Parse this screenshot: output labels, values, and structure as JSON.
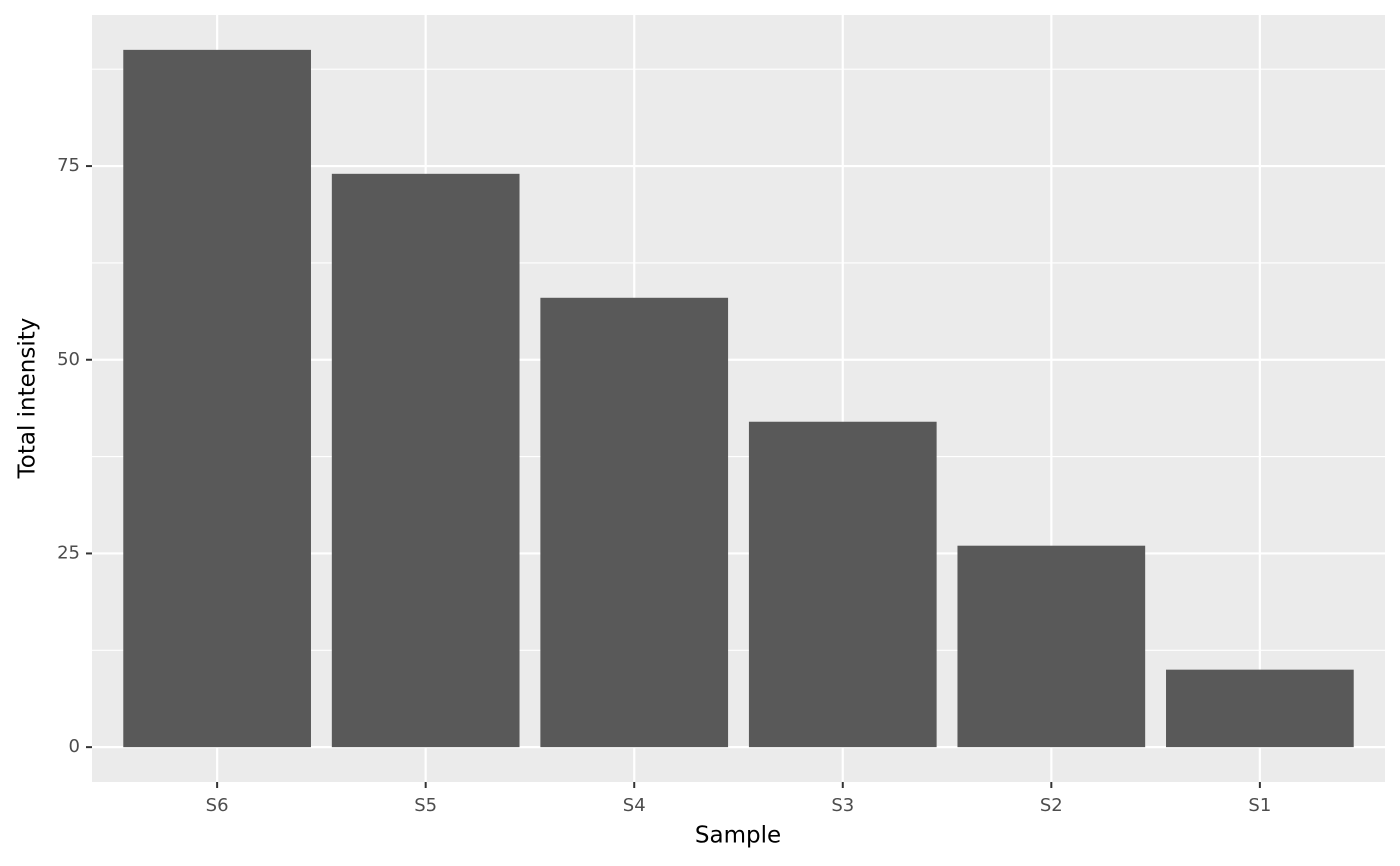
{
  "chart_data": {
    "type": "bar",
    "x_label": "Sample",
    "y_label": "Total intensity",
    "categories": [
      "S6",
      "S5",
      "S4",
      "S3",
      "S2",
      "S1"
    ],
    "values": [
      90,
      74,
      58,
      42,
      26,
      10
    ],
    "color": "#595959",
    "ylim": [
      -4.5,
      94.5
    ],
    "yticks": [
      0,
      25,
      50,
      75
    ],
    "grid": true
  }
}
